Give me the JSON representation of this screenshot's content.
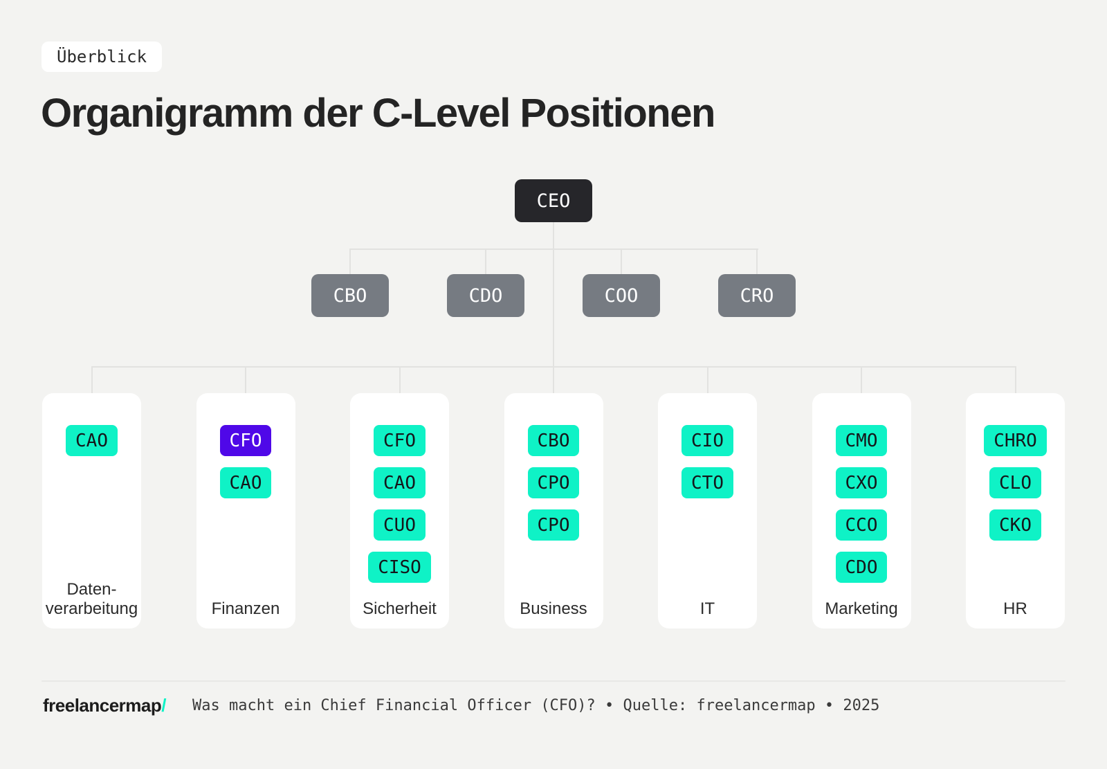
{
  "badge": "Überblick",
  "title": "Organigramm der C-Level Positionen",
  "colors": {
    "background": "#f3f3f1",
    "root_box": "#26262a",
    "level2_box": "#767b82",
    "chip_green": "#0ff2c6",
    "chip_purple": "#4f08e8",
    "connector": "#e2e2e0",
    "accent_teal": "#0ff2c6"
  },
  "org": {
    "root": "CEO",
    "level2": [
      "CBO",
      "CDO",
      "COO",
      "CRO"
    ],
    "departments": [
      {
        "label_lines": [
          "Daten-",
          "verarbeitung"
        ],
        "roles": [
          {
            "name": "CAO",
            "highlight": false
          }
        ]
      },
      {
        "label_lines": [
          "Finanzen"
        ],
        "roles": [
          {
            "name": "CFO",
            "highlight": true
          },
          {
            "name": "CAO",
            "highlight": false
          }
        ]
      },
      {
        "label_lines": [
          "Sicherheit"
        ],
        "roles": [
          {
            "name": "CFO",
            "highlight": false
          },
          {
            "name": "CAO",
            "highlight": false
          },
          {
            "name": "CUO",
            "highlight": false
          },
          {
            "name": "CISO",
            "highlight": false
          }
        ]
      },
      {
        "label_lines": [
          "Business"
        ],
        "roles": [
          {
            "name": "CBO",
            "highlight": false
          },
          {
            "name": "CPO",
            "highlight": false
          },
          {
            "name": "CPO",
            "highlight": false
          }
        ]
      },
      {
        "label_lines": [
          "IT"
        ],
        "roles": [
          {
            "name": "CIO",
            "highlight": false
          },
          {
            "name": "CTO",
            "highlight": false
          }
        ]
      },
      {
        "label_lines": [
          "Marketing"
        ],
        "roles": [
          {
            "name": "CMO",
            "highlight": false
          },
          {
            "name": "CXO",
            "highlight": false
          },
          {
            "name": "CCO",
            "highlight": false
          },
          {
            "name": "CDO",
            "highlight": false
          }
        ]
      },
      {
        "label_lines": [
          "HR"
        ],
        "roles": [
          {
            "name": "CHRO",
            "highlight": false
          },
          {
            "name": "CLO",
            "highlight": false
          },
          {
            "name": "CKO",
            "highlight": false
          }
        ]
      }
    ]
  },
  "footer": {
    "logo": "freelancermap",
    "logo_slash": "/",
    "text": "Was macht ein Chief Financial Officer (CFO)? • Quelle: freelancermap • 2025"
  }
}
